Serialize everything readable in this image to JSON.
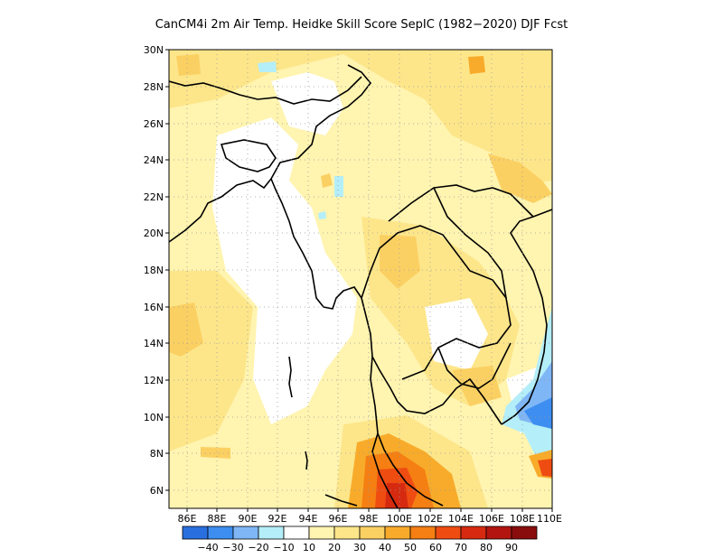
{
  "title": "CanCM4i  2m Air Temp. Heidke Skill Score SepIC (1982−2020) DJF Fcst",
  "map": {
    "lat_labels": [
      "30N",
      "28N",
      "26N",
      "24N",
      "22N",
      "20N",
      "18N",
      "16N",
      "14N",
      "12N",
      "10N",
      "8N",
      "6N"
    ],
    "lon_labels": [
      "86E",
      "88E",
      "90E",
      "92E",
      "94E",
      "96E",
      "98E",
      "100E",
      "102E",
      "104E",
      "106E",
      "108E",
      "110E"
    ]
  },
  "colorbar": {
    "labels": [
      "−40",
      "−30",
      "−20",
      "−10",
      "10",
      "20",
      "30",
      "40",
      "50",
      "60",
      "70",
      "80",
      "90"
    ],
    "colors": [
      "#2a6fe0",
      "#3d8ef0",
      "#7fb6f6",
      "#b4eef8",
      "#ffffff",
      "#fff4b0",
      "#fde68a",
      "#fbd063",
      "#f8ab2a",
      "#f57f12",
      "#ef4c12",
      "#d62a10",
      "#b21510",
      "#8a0d0d"
    ]
  }
}
